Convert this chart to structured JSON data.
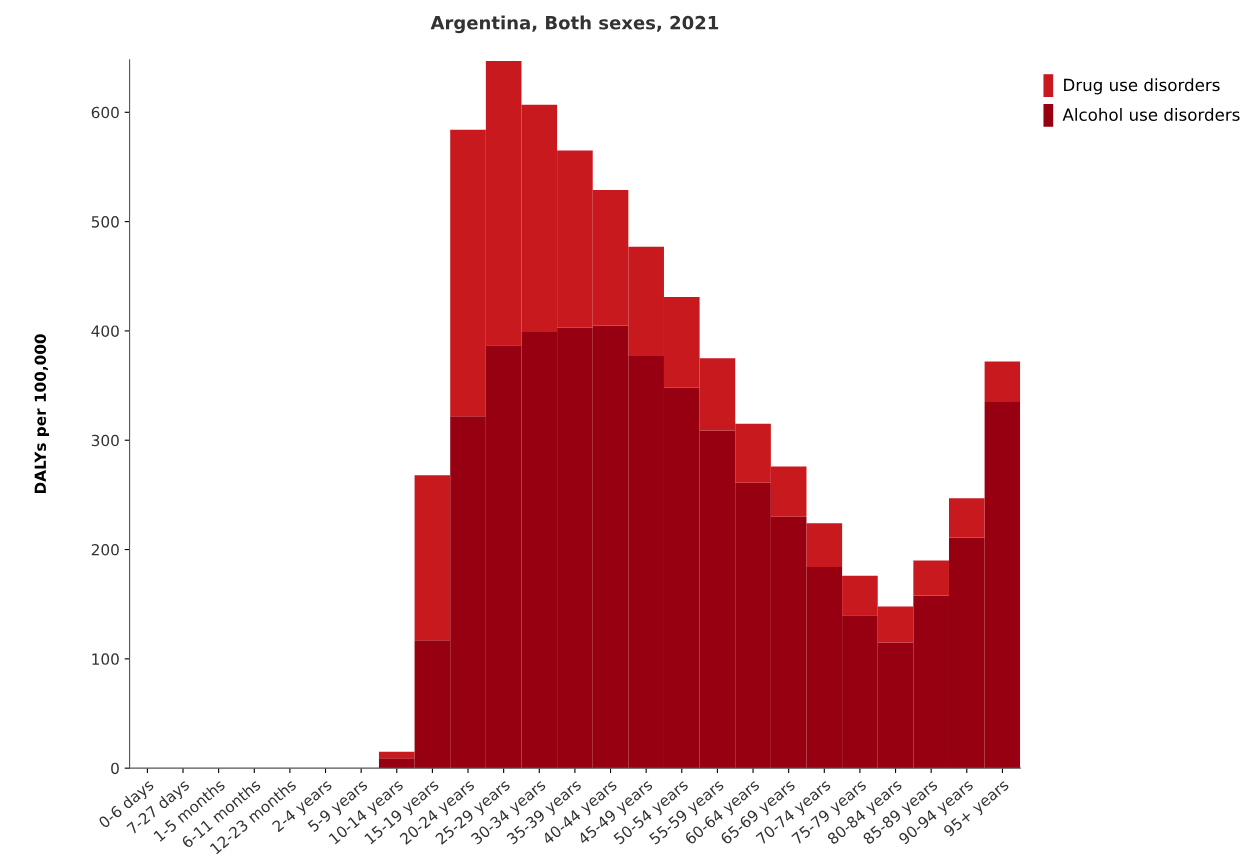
{
  "chart_data": {
    "type": "bar",
    "title": "Argentina, Both sexes, 2021",
    "ylabel": "DALYs per 100,000",
    "categories": [
      "0-6 days",
      "7-27 days",
      "1-5 months",
      "6-11 months",
      "12-23 months",
      "2-4 years",
      "5-9 years",
      "10-14 years",
      "15-19 years",
      "20-24 years",
      "25-29 years",
      "30-34 years",
      "35-39 years",
      "40-44 years",
      "45-49 years",
      "50-54 years",
      "55-59 years",
      "60-64 years",
      "65-69 years",
      "70-74 years",
      "75-79 years",
      "80-84 years",
      "85-89 years",
      "90-94 years",
      "95+ years"
    ],
    "stacked": true,
    "series": [
      {
        "name": "Alcohol use disorders",
        "color": "#960010",
        "values": [
          0,
          0,
          0,
          0,
          0,
          0,
          0,
          9,
          117,
          322,
          387,
          399,
          403,
          405,
          377,
          348,
          309,
          261,
          230,
          184,
          140,
          115,
          158,
          211,
          335
        ]
      },
      {
        "name": "Drug use disorders",
        "color": "#c8191e",
        "values": [
          0,
          0,
          0,
          0,
          0,
          0,
          0,
          6,
          151,
          262,
          260,
          208,
          162,
          124,
          100,
          83,
          66,
          54,
          46,
          40,
          36,
          33,
          32,
          36,
          37
        ]
      }
    ],
    "ylim": [
      0,
      648
    ],
    "yticks": [
      0,
      100,
      200,
      300,
      400,
      500,
      600
    ],
    "grid": false,
    "legend": "top right"
  }
}
